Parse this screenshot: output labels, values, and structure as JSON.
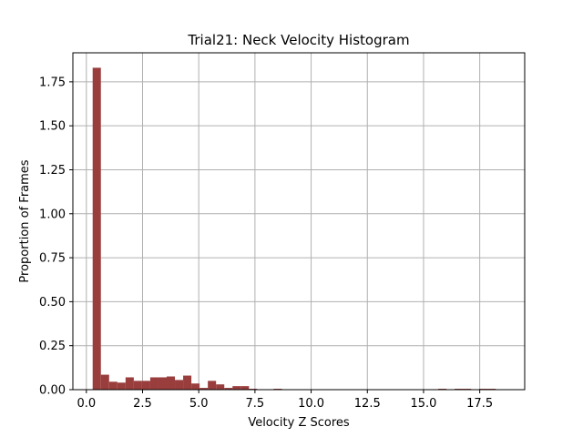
{
  "chart_data": {
    "type": "bar",
    "title": "Trial21: Neck Velocity Histogram",
    "xlabel": "Velocity Z Scores",
    "ylabel": "Proportion of Frames",
    "xlim": [
      -0.6,
      19.5
    ],
    "ylim": [
      0,
      1.915
    ],
    "xticks": [
      0.0,
      2.5,
      5.0,
      7.5,
      10.0,
      12.5,
      15.0,
      17.5
    ],
    "xtick_labels": [
      "0.0",
      "2.5",
      "5.0",
      "7.5",
      "10.0",
      "12.5",
      "15.0",
      "17.5"
    ],
    "yticks": [
      0.0,
      0.25,
      0.5,
      0.75,
      1.0,
      1.25,
      1.5,
      1.75
    ],
    "ytick_labels": [
      "0.00",
      "0.25",
      "0.50",
      "0.75",
      "1.00",
      "1.25",
      "1.50",
      "1.75"
    ],
    "grid": true,
    "bar_color": "#993d3d",
    "bin_start": 0.28,
    "bin_width": 0.366,
    "values": [
      1.83,
      0.085,
      0.045,
      0.04,
      0.07,
      0.05,
      0.05,
      0.07,
      0.07,
      0.075,
      0.055,
      0.08,
      0.035,
      0.01,
      0.05,
      0.03,
      0.01,
      0.02,
      0.02,
      0.005,
      0.0,
      0.0,
      0.005,
      0.0,
      0.0,
      0.0,
      0.0,
      0.0,
      0.0,
      0.0,
      0.0,
      0.0,
      0.0,
      0.0,
      0.0,
      0.0,
      0.0,
      0.0,
      0.0,
      0.0,
      0.0,
      0.0,
      0.005,
      0.0,
      0.005,
      0.005,
      0.0,
      0.005,
      0.005,
      0.0
    ]
  }
}
